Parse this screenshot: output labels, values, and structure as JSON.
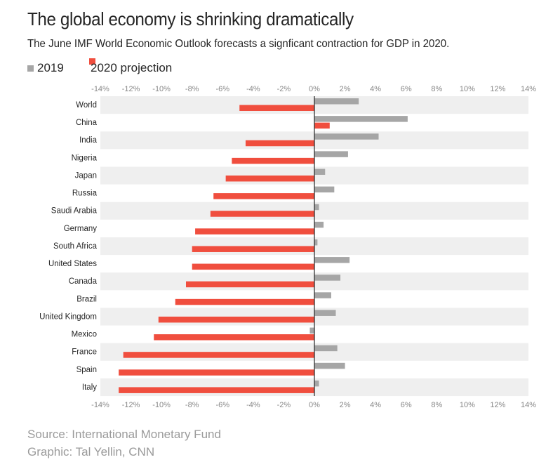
{
  "title": "The global economy is shrinking dramatically",
  "subtitle": "The June IMF World Economic Outlook forecasts a signficant contraction for GDP in 2020.",
  "source": "Source: International Monetary Fund",
  "credit": "Graphic: Tal Yellin, CNN",
  "colors": {
    "series_2019": "#a6a6a6",
    "series_2020": "#f04e3e",
    "stripe": "#efefef",
    "axis": "#262626"
  },
  "chart_data": {
    "type": "bar",
    "orientation": "horizontal",
    "title": "The global economy is shrinking dramatically",
    "subtitle": "The June IMF World Economic Outlook forecasts a signficant contraction for GDP in 2020.",
    "xlabel": "",
    "ylabel": "",
    "xlim": [
      -14,
      14
    ],
    "x_ticks": [
      "-14%",
      "-12%",
      "-10%",
      "-8%",
      "-6%",
      "-4%",
      "-2%",
      "0%",
      "2%",
      "4%",
      "6%",
      "8%",
      "10%",
      "12%",
      "14%"
    ],
    "legend_position": "top-left",
    "grid": true,
    "categories": [
      "World",
      "China",
      "India",
      "Nigeria",
      "Japan",
      "Russia",
      "Saudi Arabia",
      "Germany",
      "South Africa",
      "United States",
      "Canada",
      "Brazil",
      "United Kingdom",
      "Mexico",
      "France",
      "Spain",
      "Italy"
    ],
    "series": [
      {
        "name": "2019",
        "color": "#a6a6a6",
        "values": [
          2.9,
          6.1,
          4.2,
          2.2,
          0.7,
          1.3,
          0.3,
          0.6,
          0.2,
          2.3,
          1.7,
          1.1,
          1.4,
          -0.3,
          1.5,
          2.0,
          0.3
        ]
      },
      {
        "name": "2020 projection",
        "color": "#f04e3e",
        "values": [
          -4.9,
          1.0,
          -4.5,
          -5.4,
          -5.8,
          -6.6,
          -6.8,
          -7.8,
          -8.0,
          -8.0,
          -8.4,
          -9.1,
          -10.2,
          -10.5,
          -12.5,
          -12.8,
          -12.8
        ]
      }
    ]
  }
}
